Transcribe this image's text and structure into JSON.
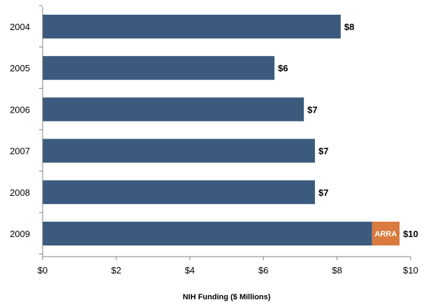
{
  "chart_data": {
    "type": "bar",
    "orientation": "horizontal",
    "categories": [
      "2004",
      "2005",
      "2006",
      "2007",
      "2008",
      "2009"
    ],
    "series": [
      {
        "values": [
          8.1,
          6.3,
          7.1,
          7.4,
          7.4,
          8.95
        ]
      },
      {
        "name": "ARRA",
        "values": [
          0,
          0,
          0,
          0,
          0,
          0.75
        ]
      }
    ],
    "data_labels": [
      "$8",
      "$6",
      "$7",
      "$7",
      "$7",
      "$10"
    ],
    "xlabel": "NIH Funding  ($ Millions)",
    "ylabel": "",
    "xlim": [
      0,
      10
    ],
    "xticks": [
      0,
      2,
      4,
      6,
      8,
      10
    ],
    "xtick_labels": [
      "$0",
      "$2",
      "$4",
      "$6",
      "$8",
      "$10"
    ],
    "grid": false,
    "legend": "none",
    "colors": {
      "base": "#3b5a7e",
      "arra": "#d97a3f"
    }
  }
}
